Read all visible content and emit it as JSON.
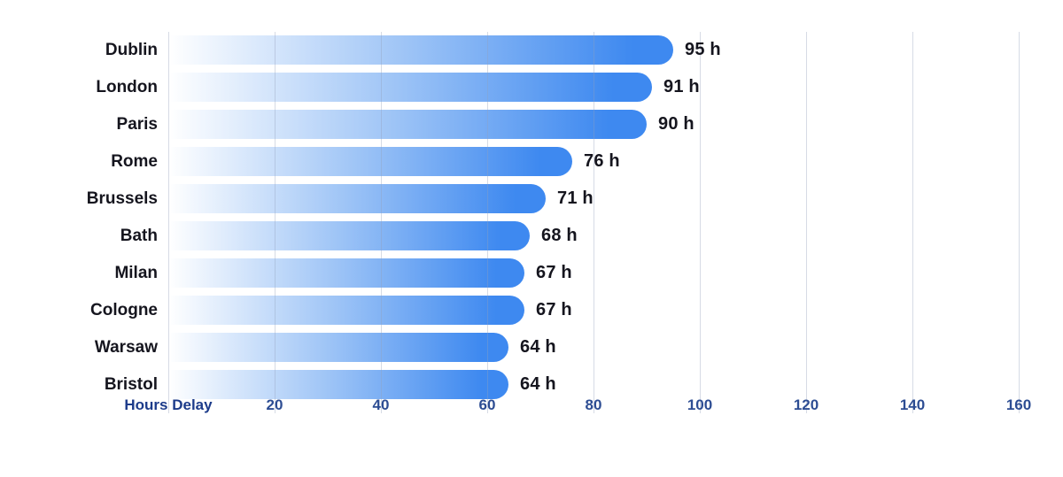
{
  "chart_data": {
    "type": "bar",
    "orientation": "horizontal",
    "title": "",
    "xlabel": "Hours Delay",
    "ylabel": "",
    "categories": [
      "Dublin",
      "London",
      "Paris",
      "Rome",
      "Brussels",
      "Bath",
      "Milan",
      "Cologne",
      "Warsaw",
      "Bristol"
    ],
    "values": [
      95,
      91,
      90,
      76,
      71,
      68,
      67,
      67,
      64,
      64
    ],
    "value_labels": [
      "95 h",
      "91 h",
      "90 h",
      "76 h",
      "71 h",
      "68 h",
      "67 h",
      "67 h",
      "64 h",
      "64 h"
    ],
    "x_ticks": [
      20,
      40,
      60,
      80,
      100,
      120,
      140,
      160
    ],
    "xlim": [
      0,
      160
    ],
    "grid": true,
    "legend": "none",
    "colors": {
      "background": "#ffffff",
      "bar_gradient_start": "#ffffff",
      "bar_gradient_mid": "#9cc3f6",
      "bar_gradient_end": "#3e89f0",
      "gridline": "rgba(148,160,186,0.38)",
      "category_text": "#15151e",
      "value_text": "#15151e",
      "tick_text": "#2d4d93",
      "axis_title_text": "#1c3b8a"
    }
  }
}
